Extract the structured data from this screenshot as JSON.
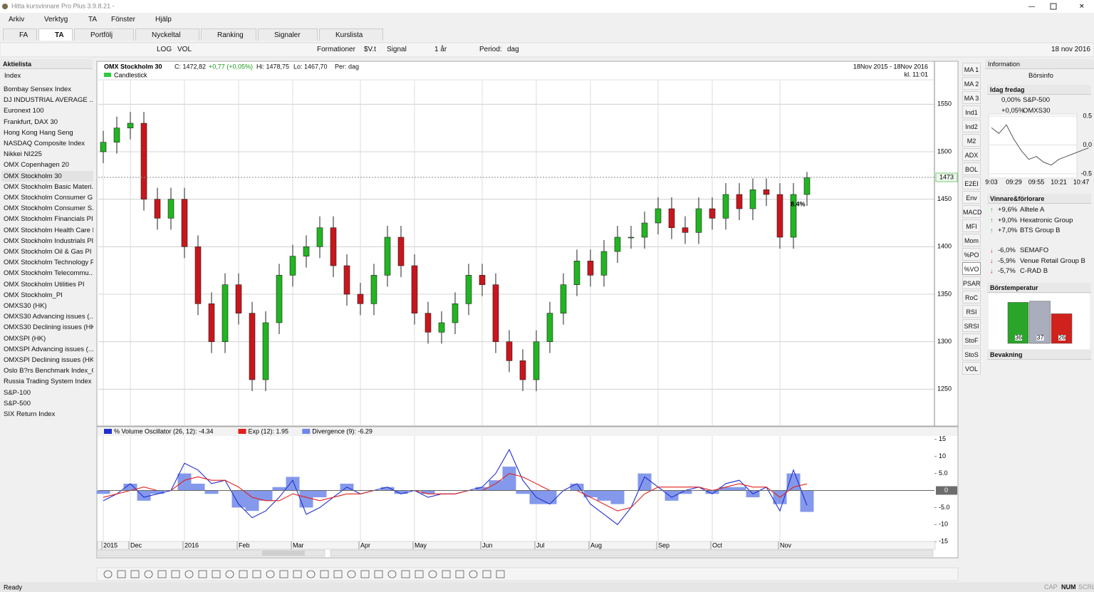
{
  "window": {
    "title": "Hitta kursvinnare Pro Plus 3.9.8.21 -"
  },
  "menu": [
    "Arkiv",
    "Verktyg",
    "TA",
    "Fönster",
    "Hjälp"
  ],
  "tabs": [
    "FA",
    "TA",
    "Portfölj",
    "Nyckeltal",
    "Ranking",
    "Signaler",
    "Kurslista"
  ],
  "active_tab": 1,
  "toolbar": {
    "log": "LOG",
    "vol": "VOL",
    "formations": "Formationer",
    "sv": "$V.t",
    "signal": "Signal",
    "range": "1 år",
    "period_label": "Period:",
    "period": "dag",
    "date": "18 nov 2016"
  },
  "stock_list": {
    "title": "Aktielista",
    "filter": "Index",
    "selected": 8,
    "items": [
      "Bombay Sensex Index",
      "DJ INDUSTRIAL AVERAGE ...",
      "Euronext 100",
      "Frankfurt, DAX 30",
      "Hong Kong Hang Seng",
      "NASDAQ Composite Index",
      "Nikkei NI225",
      "OMX Copenhagen 20",
      "OMX Stockholm 30",
      "OMX Stockholm Basic Materi...",
      "OMX Stockholm Consumer G...",
      "OMX Stockholm Consumer S...",
      "OMX Stockholm Financials PI",
      "OMX Stockholm Health Care PI",
      "OMX Stockholm Industrials PI",
      "OMX Stockholm Oil & Gas PI",
      "OMX Stockholm Technology PI",
      "OMX Stockholm Telecommu...",
      "OMX Stockholm Utilities PI",
      "OMX Stockholm_PI",
      "OMXS30 (HK)",
      "OMXS30 Advancing issues (...",
      "OMXS30 Declining issues (HK)",
      "OMXSPI (HK)",
      "OMXSPI Advancing issues (...",
      "OMXSPI Declining issues (HK)",
      "Oslo B?rs Benchmark Index_GI",
      "Russia Trading System Index",
      "S&P-100",
      "S&P-500",
      "SIX Return Index"
    ]
  },
  "chart_data": [
    {
      "type": "candlestick",
      "title": "OMX Stockholm 30",
      "header": [
        "C: 1472,82",
        "+0,77 (+0,05%)",
        "Hi: 1478,75",
        "Lo: 1467,70",
        "Per: dag"
      ],
      "chart_style": "Candlestick",
      "date_range": "18Nov 2015 - 18Nov 2016",
      "time": "kl. 11:01",
      "annotation": "8.4%",
      "open": [
        1500,
        1510,
        1525,
        1530,
        1450,
        1430,
        1450,
        1400,
        1340,
        1300,
        1360,
        1330,
        1260,
        1320,
        1370,
        1390,
        1400,
        1420,
        1380,
        1350,
        1340,
        1370,
        1410,
        1380,
        1330,
        1310,
        1320,
        1340,
        1370,
        1360,
        1300,
        1280,
        1260,
        1300,
        1330,
        1360,
        1385,
        1370,
        1395,
        1410,
        1410,
        1425,
        1440,
        1420,
        1415,
        1440,
        1430,
        1455,
        1440,
        1460,
        1455,
        1410,
        1455
      ],
      "high": [
        1522,
        1537,
        1542,
        1542,
        1462,
        1462,
        1462,
        1412,
        1352,
        1372,
        1372,
        1342,
        1332,
        1382,
        1402,
        1412,
        1432,
        1432,
        1392,
        1362,
        1382,
        1422,
        1422,
        1392,
        1342,
        1332,
        1352,
        1382,
        1382,
        1372,
        1312,
        1292,
        1312,
        1342,
        1372,
        1397,
        1397,
        1407,
        1422,
        1422,
        1437,
        1452,
        1452,
        1432,
        1452,
        1452,
        1467,
        1467,
        1472,
        1472,
        1467,
        1467,
        1478.75
      ],
      "low": [
        1488,
        1498,
        1513,
        1438,
        1418,
        1418,
        1388,
        1328,
        1288,
        1288,
        1318,
        1248,
        1248,
        1308,
        1358,
        1378,
        1388,
        1368,
        1338,
        1328,
        1328,
        1358,
        1368,
        1318,
        1298,
        1298,
        1308,
        1328,
        1348,
        1288,
        1268,
        1248,
        1248,
        1288,
        1318,
        1348,
        1358,
        1358,
        1383,
        1398,
        1398,
        1413,
        1408,
        1403,
        1403,
        1418,
        1418,
        1428,
        1428,
        1443,
        1398,
        1398,
        1443
      ],
      "close": [
        1510,
        1525,
        1530,
        1450,
        1430,
        1450,
        1400,
        1340,
        1300,
        1360,
        1330,
        1260,
        1320,
        1370,
        1390,
        1400,
        1420,
        1380,
        1350,
        1340,
        1370,
        1410,
        1380,
        1330,
        1310,
        1320,
        1340,
        1370,
        1360,
        1300,
        1280,
        1260,
        1300,
        1330,
        1360,
        1385,
        1370,
        1395,
        1410,
        1410,
        1425,
        1440,
        1420,
        1415,
        1440,
        1430,
        1455,
        1440,
        1460,
        1455,
        1410,
        1455,
        1472.82
      ],
      "up_color": "#21b521",
      "down_color": "#c8161c",
      "last_price": 1473,
      "ylim": [
        1212,
        1575
      ],
      "yticks": [
        1550,
        1500,
        1450,
        1400,
        1350,
        1300,
        1250
      ],
      "grid": true
    },
    {
      "type": "line",
      "categories": [
        "2015",
        null,
        "Dec",
        null,
        null,
        null,
        "2016",
        null,
        null,
        null,
        "Feb",
        null,
        null,
        null,
        "Mar",
        null,
        null,
        null,
        null,
        "Apr",
        null,
        null,
        null,
        "May",
        null,
        null,
        null,
        null,
        "Jun",
        null,
        null,
        null,
        "Jul",
        null,
        null,
        null,
        "Aug",
        null,
        null,
        null,
        null,
        "Sep",
        null,
        null,
        null,
        "Oct",
        null,
        null,
        null,
        null,
        "Nov",
        null,
        null
      ],
      "series": [
        {
          "name": "% Volume Oscillator (26, 12): -4.34",
          "color": "#1f2fd0",
          "style": "line",
          "values": [
            -3,
            -1,
            2,
            -2,
            -1,
            0,
            8,
            6,
            2,
            3,
            -4,
            -8,
            -6,
            -2,
            3,
            -7,
            -5,
            -2,
            1,
            -1,
            0,
            1,
            -1,
            0,
            -2,
            -1,
            -1,
            0,
            1,
            5,
            12,
            3,
            -2,
            -4,
            0,
            2,
            -4,
            -7,
            -10,
            -5,
            4,
            1,
            -2,
            0,
            1,
            -1,
            2,
            3,
            -1,
            1,
            -6,
            6,
            -4.34
          ]
        },
        {
          "name": "Exp (12): 1.95",
          "color": "#e0201c",
          "style": "line",
          "values": [
            -2,
            -1,
            0,
            1,
            0,
            0,
            3,
            4,
            3,
            3,
            1,
            -2,
            -3,
            -3,
            -1,
            -2,
            -3,
            -2,
            -1,
            -1,
            0,
            0,
            0,
            0,
            -1,
            -1,
            -1,
            0,
            0,
            2,
            5,
            4,
            2,
            0,
            0,
            0,
            -2,
            -4,
            -6,
            -5,
            -1,
            1,
            1,
            1,
            1,
            0,
            1,
            2,
            1,
            1,
            -2,
            1,
            1.95
          ]
        },
        {
          "name": "Divergence (9): -6.29",
          "color": "#6f87e8",
          "style": "area",
          "values": [
            -1,
            0,
            2,
            -3,
            -1,
            0,
            5,
            2,
            -1,
            0,
            -5,
            -6,
            -3,
            1,
            4,
            -5,
            -2,
            0,
            2,
            0,
            0,
            1,
            -1,
            0,
            -1,
            0,
            0,
            0,
            1,
            3,
            7,
            -1,
            -4,
            -4,
            0,
            2,
            -2,
            -3,
            -4,
            0,
            5,
            0,
            -3,
            -1,
            0,
            -1,
            1,
            1,
            -2,
            0,
            -4,
            5,
            -6.29
          ]
        }
      ],
      "ylim": [
        -16,
        16
      ],
      "yticks": [
        15,
        10,
        {
          "value": 5,
          "label": "5.0"
        },
        0,
        {
          "value": -5,
          "label": "-5.0"
        },
        -10,
        -15
      ],
      "grid": true
    },
    {
      "type": "line",
      "categories": [
        "9:03",
        null,
        null,
        "09:29",
        null,
        null,
        "09:55",
        null,
        null,
        "10:21",
        null,
        null,
        "10:47",
        null
      ],
      "values": [
        0.3,
        0.2,
        0.35,
        0.1,
        -0.1,
        -0.25,
        -0.2,
        -0.3,
        -0.35,
        -0.25,
        -0.2,
        -0.15,
        -0.1,
        -0.05
      ],
      "color": "#555555",
      "ylim": [
        -0.6,
        0.6
      ],
      "yticks": [
        {
          "value": 0.5,
          "label": "0.5"
        },
        {
          "value": 0,
          "label": "0.0"
        },
        {
          "value": -0.5,
          "label": "-0.5"
        }
      ]
    },
    {
      "type": "bar",
      "title": "Börstemperatur",
      "values": [
        36,
        37,
        26
      ],
      "colors": [
        "#2aa52a",
        "#a9adbd",
        "#d0211c"
      ]
    }
  ],
  "indicators": [
    "MA 1",
    "MA 2",
    "MA 3",
    "Ind1",
    "Ind2",
    "M2",
    "ADX",
    "BOL",
    "E2EI",
    "Env",
    "MACD",
    "MFI",
    "Mom",
    "%PO",
    "%VO",
    "PSAR",
    "RoC",
    "RSI",
    "SRSI",
    "StoF",
    "StoS",
    "VOL"
  ],
  "active_indicator": 14,
  "info": {
    "title": "Information",
    "borsinfo": "Börsinfo",
    "today": "Idag fredag",
    "indices": [
      {
        "change": "0,00%",
        "name": "S&P-500"
      },
      {
        "change": "+0,05%",
        "name": "OMXS30"
      }
    ],
    "winners_title": "Vinnare&förlorare",
    "winners": [
      {
        "change": "+9,6%",
        "name": "Alltele A"
      },
      {
        "change": "+9,0%",
        "name": "Hexatronic Group"
      },
      {
        "change": "+7,0%",
        "name": "BTS Group B"
      }
    ],
    "losers": [
      {
        "change": "-6,0%",
        "name": "SEMAFO"
      },
      {
        "change": "-5,9%",
        "name": "Venue Retail Group B"
      },
      {
        "change": "-5,7%",
        "name": "C-RAD B"
      }
    ],
    "watch": "Bevakning"
  },
  "status": {
    "text": "Ready",
    "keys": [
      "CAP",
      "NUM",
      "SCRL"
    ]
  }
}
